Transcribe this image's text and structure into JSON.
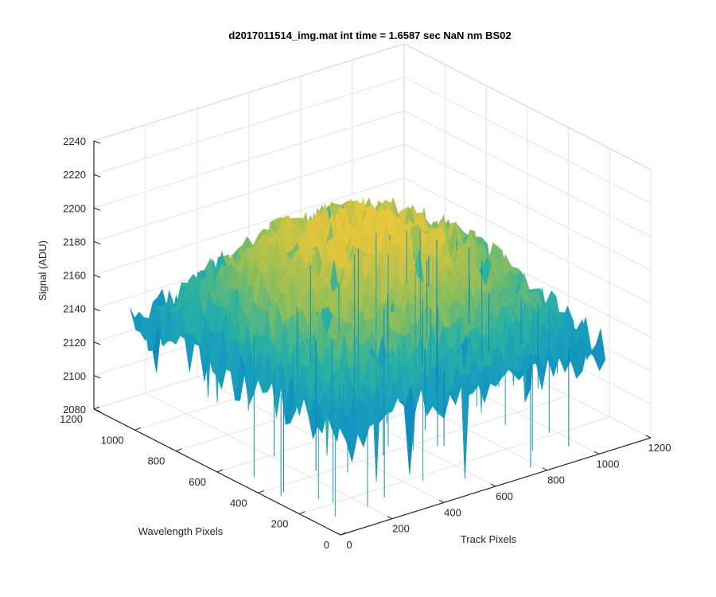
{
  "chart_data": {
    "type": "surface",
    "title": "d2017011514_img.mat int time = 1.6587 sec  NaN nm BS02",
    "xlabel": "Track Pixels",
    "ylabel": "Wavelength Pixels",
    "zlabel": "Signal (ADU)",
    "xlim": [
      0,
      1200
    ],
    "ylim": [
      0,
      1200
    ],
    "zlim": [
      2080,
      2240
    ],
    "x_ticks": [
      "0",
      "200",
      "400",
      "600",
      "800",
      "1000",
      "1200"
    ],
    "y_ticks": [
      "0",
      "200",
      "400",
      "600",
      "800",
      "1000",
      "1200"
    ],
    "z_ticks": [
      "2080",
      "2100",
      "2120",
      "2140",
      "2160",
      "2180",
      "2200",
      "2220",
      "2240"
    ],
    "grid": true,
    "colormap": "parula",
    "colors": {
      "low": "#0072BD",
      "mid": "#20B2AA",
      "high": "#E6C63A"
    },
    "surface": {
      "x_range": [
        0,
        1024
      ],
      "y_range": [
        0,
        1024
      ],
      "signal_center_max": 2205,
      "signal_edge": 2140,
      "signal_min_spikes": 2080,
      "noise_amplitude": 25
    }
  }
}
